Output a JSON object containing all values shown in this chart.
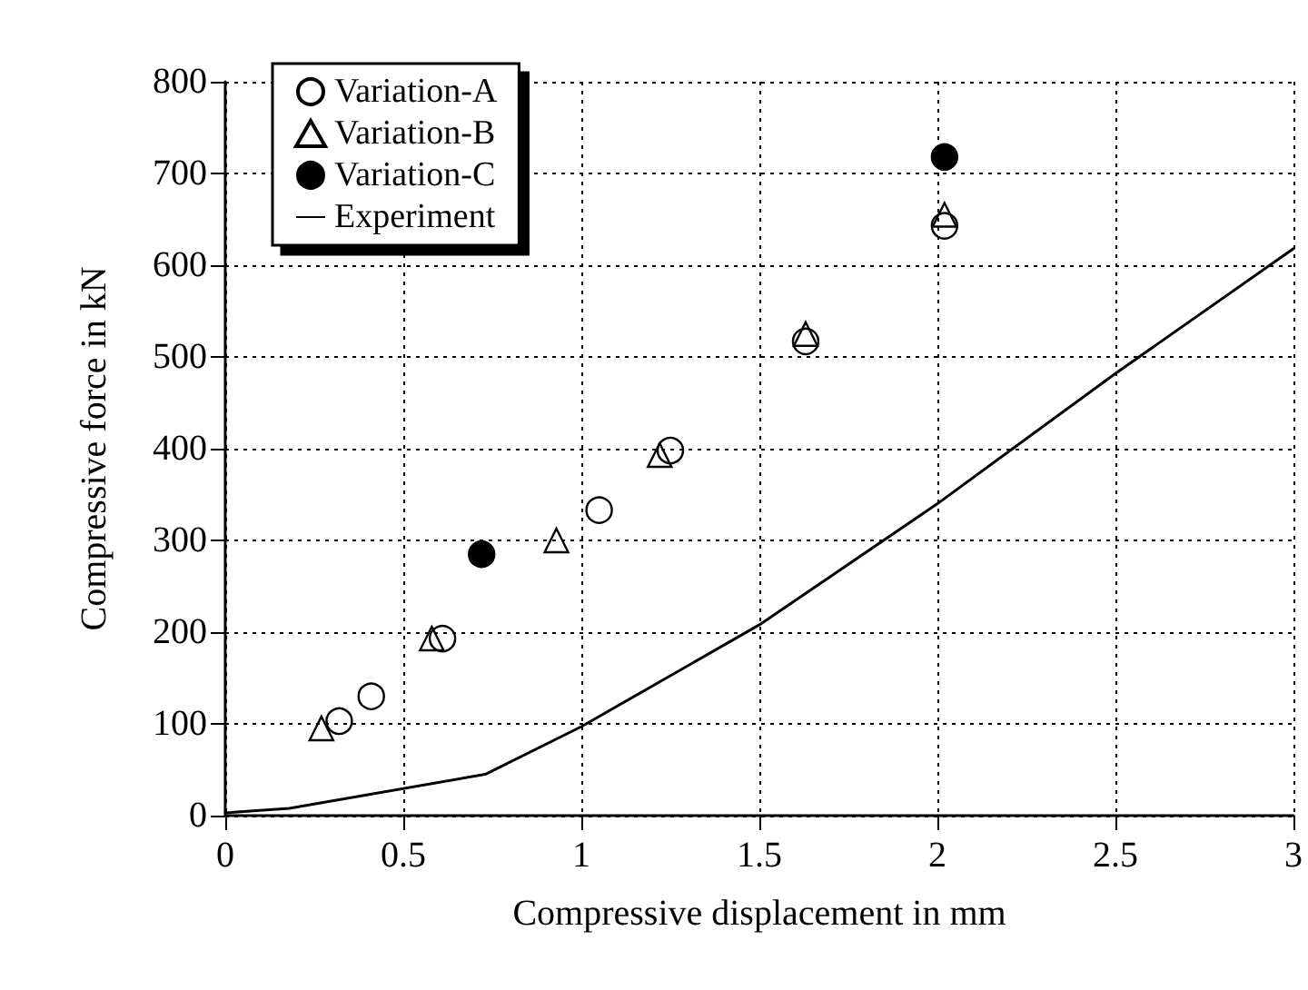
{
  "chart_data": {
    "type": "scatter",
    "xlabel": "Compressive displacement in mm",
    "ylabel": "Compressive force in kN",
    "xlim": [
      0,
      3
    ],
    "xticks": [
      0,
      0.5,
      1,
      1.5,
      2,
      2.5,
      3
    ],
    "ylim": [
      0,
      800
    ],
    "yticks": [
      0,
      100,
      200,
      300,
      400,
      500,
      600,
      700,
      800
    ],
    "grid": true,
    "legend": "top left",
    "series": [
      {
        "name": "Variation-A",
        "marker": "circle",
        "color": "#000000",
        "x": [
          0.32,
          0.41,
          0.61,
          1.05,
          1.25,
          1.63,
          2.02
        ],
        "values": [
          103,
          130,
          193,
          333,
          398,
          517,
          643
        ]
      },
      {
        "name": "Variation-B",
        "marker": "triangle",
        "color": "#000000",
        "x": [
          0.27,
          0.58,
          0.93,
          1.22,
          1.63,
          2.02
        ],
        "values": [
          95,
          193,
          300,
          393,
          525,
          655
        ]
      },
      {
        "name": "Variation-C",
        "marker": "circle",
        "color": "#000000",
        "x": [
          0.72,
          2.02
        ],
        "values": [
          285,
          718
        ]
      },
      {
        "name": "Experiment",
        "type": "line",
        "marker": "none",
        "line_style": "solid",
        "color": "#000000",
        "x": [
          0,
          0.18,
          0.73,
          1.0,
          1.5,
          2.0,
          2.5,
          3.0
        ],
        "values": [
          3,
          8,
          45,
          97,
          208,
          340,
          482,
          618
        ]
      }
    ]
  }
}
